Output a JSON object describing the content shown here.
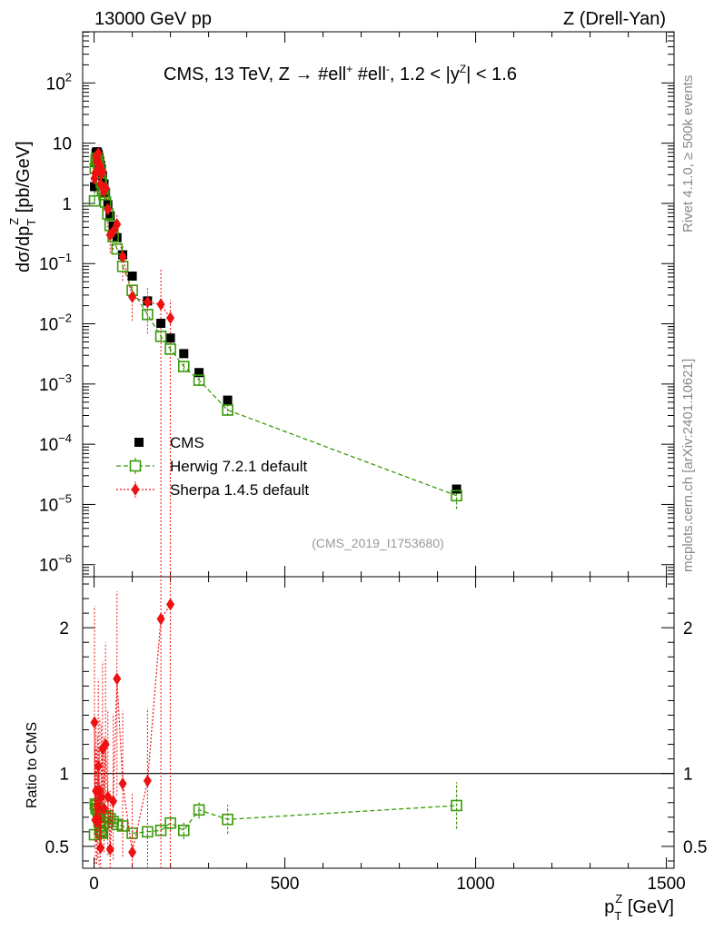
{
  "header": {
    "left": "13000 GeV pp",
    "right": "Z (Drell-Yan)"
  },
  "side": {
    "rivet": "Rivet 4.1.0, ≥ 500k events",
    "mcplots": "mcplots.cern.ch [arXiv:2401.10621]"
  },
  "colors": {
    "cms": "#000000",
    "herwig": "#3a9a0a",
    "sherpa": "#ee1111"
  },
  "chart_data": {
    "type": "scatter",
    "title_main": "CMS, 13 TeV, Z →  #ell",
    "title_sup1": "+",
    "title_mid": " #ell",
    "title_sup2": "-",
    "title_cut_a": ", 1.2 < |y",
    "title_cut_sup": "Z",
    "title_cut_b": "| < 1.6",
    "analysis_id": "(CMS_2019_I1753680)",
    "xlabel_main": "p",
    "xlabel_sub": "T",
    "xlabel_sup": "Z",
    "xlabel_unit": " [GeV]",
    "ylabel": "dσ/dp",
    "ylabel_sub": "T",
    "ylabel_sup": "Z",
    "ylabel_unit": " [pb/GeV]",
    "ratio_ylabel": "Ratio to CMS",
    "xlim": [
      -30,
      1520
    ],
    "ylim_log": [
      -6.2,
      2.85
    ],
    "ratio_ylim": [
      0.35,
      2.35
    ],
    "x_ticks": [
      0,
      500,
      1000,
      1500
    ],
    "x_tick_labels": [
      "0",
      "500",
      "1000",
      "1500"
    ],
    "y_ticks_exp": [
      -6,
      -5,
      -4,
      -3,
      -2,
      -1,
      0,
      1,
      2
    ],
    "y_tick_labels": [
      {
        "base": "10",
        "exp": "−6"
      },
      {
        "base": "10",
        "exp": "−5"
      },
      {
        "base": "10",
        "exp": "−4"
      },
      {
        "base": "10",
        "exp": "−3"
      },
      {
        "base": "10",
        "exp": "−2"
      },
      {
        "base": "10",
        "exp": "−1"
      },
      {
        "base": "1",
        "exp": ""
      },
      {
        "base": "10",
        "exp": ""
      },
      {
        "base": "10",
        "exp": "2"
      }
    ],
    "ratio_ticks": [
      0.5,
      1,
      2
    ],
    "ratio_tick_labels": [
      "0.5",
      "1",
      "2"
    ],
    "series": [
      {
        "name": "CMS",
        "key": "cms",
        "x": [
          1,
          3,
          5,
          7,
          9,
          11,
          13,
          15,
          17,
          19,
          22,
          26,
          30,
          36,
          42,
          50,
          60,
          75,
          100,
          140,
          175,
          200,
          235,
          275,
          350,
          950
        ],
        "y": [
          1.9,
          4.8,
          6.8,
          7.2,
          6.9,
          6.4,
          5.7,
          5.0,
          4.3,
          3.7,
          2.9,
          2.1,
          1.5,
          0.95,
          0.62,
          0.42,
          0.27,
          0.14,
          0.062,
          0.024,
          0.0102,
          0.0058,
          0.0032,
          0.00155,
          0.00054,
          1.8e-05
        ],
        "yerr_low": [],
        "yerr_high": []
      },
      {
        "name": "Herwig 7.2.1 default",
        "key": "herwig",
        "x": [
          1,
          3,
          5,
          7,
          9,
          11,
          13,
          15,
          17,
          19,
          22,
          26,
          30,
          36,
          42,
          50,
          60,
          75,
          100,
          140,
          175,
          200,
          235,
          275,
          350,
          950
        ],
        "y": [
          1.1,
          3.8,
          5.2,
          5.6,
          5.2,
          4.6,
          3.8,
          3.2,
          2.6,
          2.2,
          1.7,
          1.4,
          1.05,
          0.67,
          0.43,
          0.28,
          0.175,
          0.09,
          0.036,
          0.0143,
          0.0062,
          0.0038,
          0.00195,
          0.00116,
          0.00037,
          1.4e-05
        ],
        "ratio": [
          0.58,
          0.79,
          0.76,
          0.78,
          0.75,
          0.72,
          0.67,
          0.64,
          0.61,
          0.6,
          0.59,
          0.66,
          0.7,
          0.71,
          0.69,
          0.67,
          0.65,
          0.64,
          0.59,
          0.6,
          0.61,
          0.66,
          0.61,
          0.75,
          0.685,
          0.78
        ],
        "ratio_err": [
          0.04,
          0.03,
          0.03,
          0.03,
          0.03,
          0.03,
          0.03,
          0.03,
          0.03,
          0.03,
          0.03,
          0.03,
          0.03,
          0.03,
          0.03,
          0.03,
          0.03,
          0.03,
          0.03,
          0.03,
          0.04,
          0.05,
          0.06,
          0.06,
          0.1,
          0.16
        ],
        "yerr_rel": [
          0.05,
          0.03,
          0.03,
          0.03,
          0.03,
          0.03,
          0.03,
          0.03,
          0.03,
          0.03,
          0.03,
          0.04,
          0.04,
          0.04,
          0.04,
          0.04,
          0.04,
          0.05,
          0.06,
          0.08,
          0.1,
          0.12,
          0.14,
          0.16,
          0.2,
          0.4
        ]
      },
      {
        "name": "Sherpa 1.4.5 default",
        "key": "sherpa",
        "x": [
          1,
          3,
          5,
          7,
          9,
          11,
          13,
          15,
          17,
          19,
          22,
          26,
          30,
          36,
          42,
          50,
          60,
          75,
          100,
          140,
          175,
          200
        ],
        "y": [
          2.6,
          3.2,
          6.0,
          4.9,
          5.3,
          6.7,
          3.8,
          4.4,
          2.1,
          3.1,
          3.4,
          1.6,
          1.8,
          0.8,
          0.3,
          0.34,
          0.45,
          0.13,
          0.028,
          0.023,
          0.021,
          0.0125
        ],
        "ratio": [
          1.35,
          0.68,
          0.88,
          0.68,
          0.77,
          1.05,
          0.67,
          0.88,
          0.49,
          0.84,
          1.17,
          0.76,
          1.2,
          0.84,
          0.48,
          0.81,
          1.65,
          0.93,
          0.46,
          0.95,
          2.06,
          2.16
        ],
        "ratio_err_low": [
          0.6,
          0.3,
          0.35,
          0.3,
          0.35,
          0.4,
          0.3,
          0.35,
          0.2,
          0.35,
          0.45,
          0.3,
          0.5,
          0.4,
          0.3,
          0.4,
          0.8,
          0.5,
          0.3,
          0.6,
          2.5,
          2.5
        ],
        "ratio_err_high": [
          0.8,
          0.5,
          0.5,
          0.5,
          0.5,
          0.6,
          0.5,
          0.5,
          0.4,
          0.5,
          0.6,
          0.5,
          0.7,
          0.6,
          0.4,
          0.6,
          0.6,
          0.5,
          0.4,
          0.5,
          0.3,
          0.2
        ],
        "yerr_low_factor": [
          0.5,
          0.4,
          0.4,
          0.4,
          0.4,
          0.4,
          0.4,
          0.4,
          0.4,
          0.4,
          0.5,
          0.5,
          0.5,
          0.5,
          0.5,
          0.5,
          0.5,
          0.6,
          0.6,
          0.7,
          1.0,
          1.0
        ],
        "yerr_high_factor": [
          0.5,
          0.4,
          0.4,
          0.4,
          0.4,
          0.4,
          0.4,
          0.4,
          0.4,
          0.4,
          0.5,
          0.5,
          0.5,
          0.5,
          0.5,
          0.5,
          0.5,
          0.6,
          0.6,
          0.7,
          3.0,
          1.0
        ]
      }
    ],
    "legend": [
      {
        "key": "cms",
        "label": "CMS"
      },
      {
        "key": "herwig",
        "label": "Herwig 7.2.1 default"
      },
      {
        "key": "sherpa",
        "label": "Sherpa 1.4.5 default"
      }
    ],
    "legend_placement": "lower-left"
  }
}
